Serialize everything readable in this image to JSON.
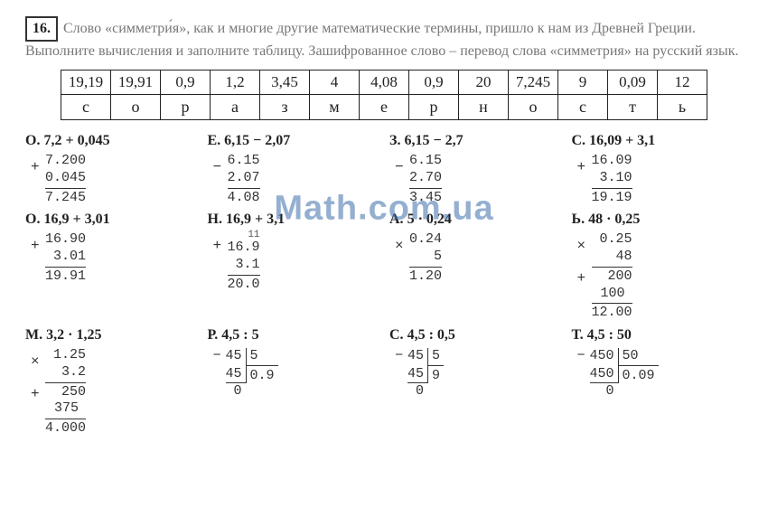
{
  "task": {
    "number": "16.",
    "text_parts": [
      "Слово «симметри́я», как и многие другие математические термины, пришло к нам из Древней Греции. Выполните вычисления и заполните таблицу. Зашифрованное слово – перевод слова «симметрия» на русский язык."
    ]
  },
  "cipher": {
    "values": [
      "19,19",
      "19,91",
      "0,9",
      "1,2",
      "3,45",
      "4",
      "4,08",
      "0,9",
      "20",
      "7,245",
      "9",
      "0,09",
      "12"
    ],
    "letters": [
      "с",
      "о",
      "р",
      "а",
      "з",
      "м",
      "е",
      "р",
      "н",
      "о",
      "с",
      "т",
      "ь"
    ]
  },
  "watermark": "Math.com.ua",
  "problems": [
    {
      "letter": "О.",
      "expr": "7,2 + 0,045",
      "calc": {
        "type": "col",
        "op": "+",
        "rows": [
          "7.200",
          "0.045"
        ],
        "result": "7.245"
      }
    },
    {
      "letter": "Е.",
      "expr": "6,15 − 2,07",
      "calc": {
        "type": "col",
        "op": "−",
        "rows": [
          "6.15",
          "2.07"
        ],
        "result": "4.08"
      }
    },
    {
      "letter": "З.",
      "expr": "6,15 − 2,7",
      "calc": {
        "type": "col",
        "op": "−",
        "rows": [
          "6.15",
          "2.70"
        ],
        "result": "3.45"
      }
    },
    {
      "letter": "С.",
      "expr": "16,09 + 3,1",
      "calc": {
        "type": "col",
        "op": "+",
        "rows": [
          "16.09",
          "3.10"
        ],
        "result": "19.19"
      }
    },
    {
      "letter": "О.",
      "expr": "16,9 + 3,01",
      "calc": {
        "type": "col",
        "op": "+",
        "rows": [
          "16.90",
          "3.01"
        ],
        "result": "19.91"
      }
    },
    {
      "letter": "Н.",
      "expr": "16,9 + 3,1",
      "calc": {
        "type": "col",
        "op": "+",
        "carry": "11",
        "rows": [
          "16.9",
          "3.1"
        ],
        "result": "20.0"
      }
    },
    {
      "letter": "А.",
      "expr": "5 · 0,24",
      "calc": {
        "type": "col",
        "op": "×",
        "rows": [
          "0.24",
          "5"
        ],
        "result": "1.20"
      }
    },
    {
      "letter": "Ь.",
      "expr": "48 · 0,25",
      "calc": {
        "type": "mult",
        "op": "×",
        "rows": [
          "0.25",
          "48"
        ],
        "partials": [
          "200",
          "100"
        ],
        "result": "12.00"
      }
    },
    {
      "letter": "М.",
      "expr": "3,2 · 1,25",
      "calc": {
        "type": "mult",
        "op": "×",
        "rows": [
          "1.25",
          "3.2"
        ],
        "partials": [
          "250",
          "375"
        ],
        "result": "4.000"
      }
    },
    {
      "letter": "Р.",
      "expr": "4,5 : 5",
      "calc": {
        "type": "div",
        "op": "−",
        "dividend": "45",
        "divisor": "5",
        "sub": "45",
        "rem": "0",
        "quot": "0.9"
      }
    },
    {
      "letter": "С.",
      "expr": "4,5 : 0,5",
      "calc": {
        "type": "div",
        "op": "−",
        "dividend": "45",
        "divisor": "5",
        "sub": "45",
        "rem": "0",
        "quot": "9"
      }
    },
    {
      "letter": "Т.",
      "expr": "4,5 : 50",
      "calc": {
        "type": "div",
        "op": "−",
        "dividend": "450",
        "divisor": "50",
        "sub": "450",
        "rem": "0",
        "quot": "0.09"
      }
    }
  ]
}
